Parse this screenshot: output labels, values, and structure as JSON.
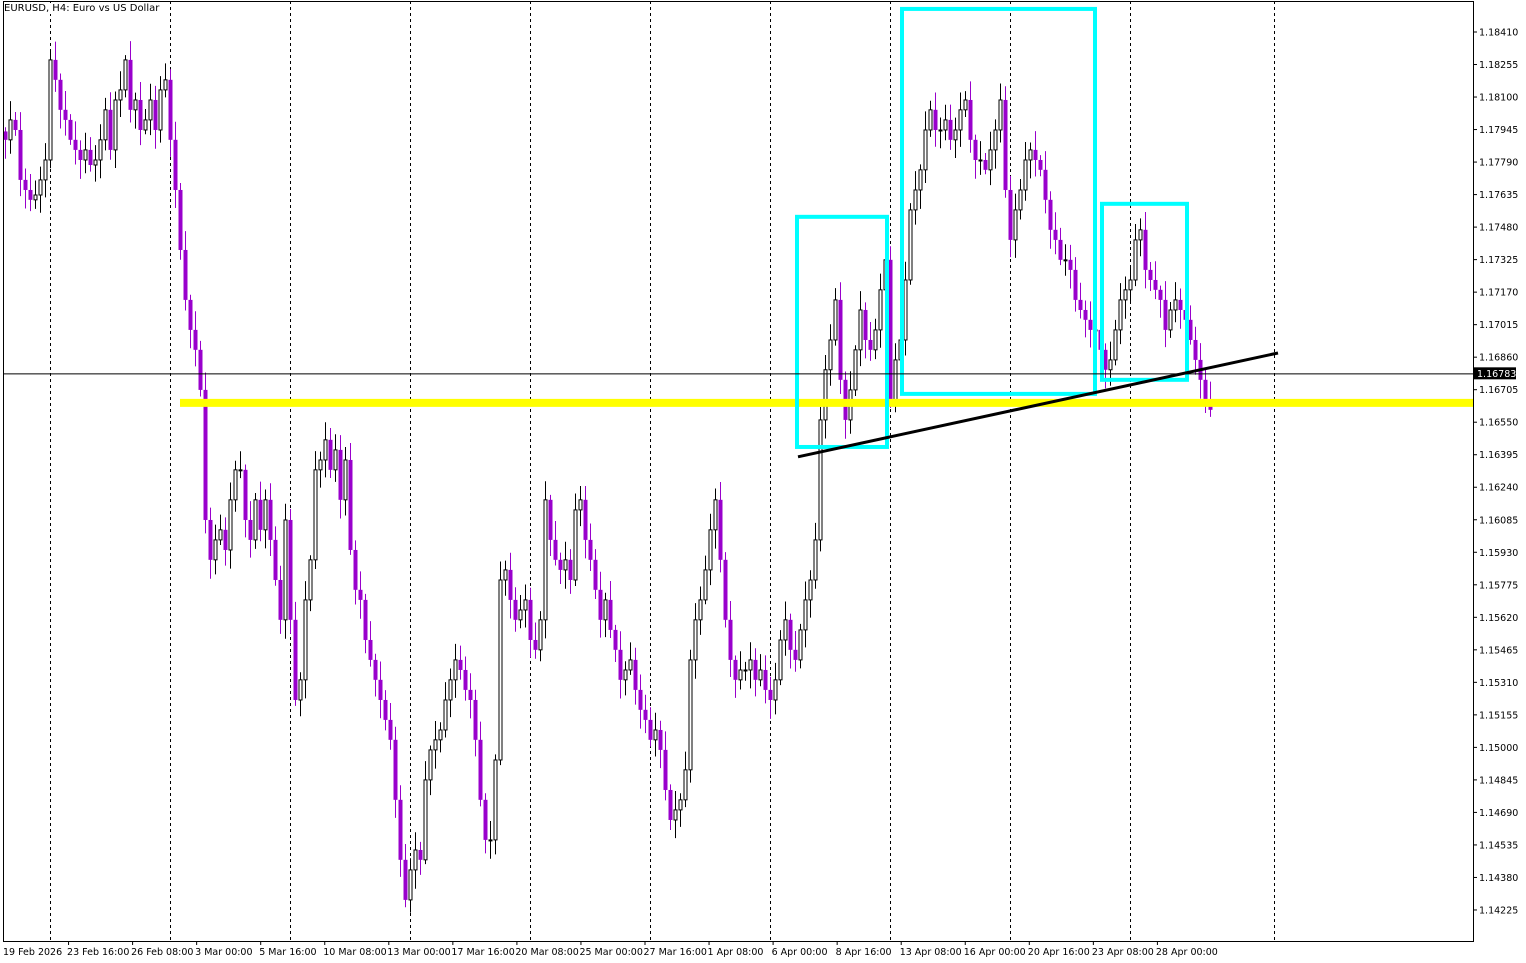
{
  "header": {
    "title": "EURUSD, H4:  Euro vs US Dollar"
  },
  "colors": {
    "bull_body": "#ffffff",
    "bull_outline": "#000000",
    "bear": "#9900cc",
    "support": "#ffff00",
    "boxes": "#00ffff",
    "trendline": "#000000",
    "bid_line": "#000000"
  },
  "chart_data": {
    "type": "candlestick",
    "symbol": "EURUSD",
    "timeframe": "H4",
    "ylim": [
      1.1408,
      1.18563
    ],
    "grid": "vertical dashed",
    "price_ticks": [
      "1.18410",
      "1.18255",
      "1.18100",
      "1.17945",
      "1.17790",
      "1.17635",
      "1.17480",
      "1.17325",
      "1.17170",
      "1.17015",
      "1.16860",
      "1.16705",
      "1.16550",
      "1.16395",
      "1.16240",
      "1.16085",
      "1.15930",
      "1.15775",
      "1.15620",
      "1.15465",
      "1.15310",
      "1.15155",
      "1.15000",
      "1.14845",
      "1.14690",
      "1.14535",
      "1.14380",
      "1.14225"
    ],
    "time_ticks": [
      "19 Feb 2026",
      "23 Feb 16:00",
      "26 Feb 08:00",
      "3 Mar 00:00",
      "5 Mar 16:00",
      "10 Mar 08:00",
      "13 Mar 00:00",
      "17 Mar 16:00",
      "20 Mar 08:00",
      "25 Mar 00:00",
      "27 Mar 16:00",
      "1 Apr 08:00",
      "6 Apr 00:00",
      "8 Apr 16:00",
      "13 Apr 08:00",
      "16 Apr 00:00",
      "20 Apr 16:00",
      "23 Apr 08:00",
      "28 Apr 00:00"
    ],
    "current_price": "1.16783",
    "closes": [
      1.17896,
      1.17991,
      1.17943,
      1.17705,
      1.17657,
      1.1761,
      1.17633,
      1.17705,
      1.178,
      1.18277,
      1.18182,
      1.18039,
      1.17991,
      1.17896,
      1.17848,
      1.178,
      1.17848,
      1.17776,
      1.178,
      1.17896,
      1.18039,
      1.17848,
      1.18086,
      1.18134,
      1.18277,
      1.18039,
      1.18086,
      1.17943,
      1.17991,
      1.18086,
      1.17943,
      1.18134,
      1.18182,
      1.17896,
      1.17657,
      1.17371,
      1.17133,
      1.1699,
      1.16895,
      1.16704,
      1.16084,
      1.15894,
      1.15989,
      1.16037,
      1.15941,
      1.1618,
      1.16323,
      1.16323,
      1.16084,
      1.15989,
      1.1618,
      1.16037,
      1.1618,
      1.15989,
      1.15798,
      1.15608,
      1.16084,
      1.15608,
      1.15226,
      1.15322,
      1.15703,
      1.15894,
      1.16323,
      1.1637,
      1.16466,
      1.16323,
      1.16418,
      1.1618,
      1.1637,
      1.15941,
      1.15751,
      1.15703,
      1.15512,
      1.15417,
      1.15322,
      1.15226,
      1.15131,
      1.15036,
      1.1475,
      1.14464,
      1.14273,
      1.14416,
      1.14511,
      1.14464,
      1.14845,
      1.14988,
      1.15036,
      1.15083,
      1.15226,
      1.15322,
      1.15417,
      1.15369,
      1.15274,
      1.15226,
      1.15036,
      1.1475,
      1.14559,
      1.14559,
      1.1494,
      1.15798,
      1.15846,
      1.15703,
      1.15608,
      1.15655,
      1.15703,
      1.15512,
      1.15465,
      1.15608,
      1.1618,
      1.15989,
      1.15894,
      1.15846,
      1.15894,
      1.15798,
      1.16132,
      1.1618,
      1.15989,
      1.15894,
      1.15751,
      1.15608,
      1.15703,
      1.1556,
      1.15465,
      1.15322,
      1.15369,
      1.15417,
      1.15274,
      1.15179,
      1.15131,
      1.15036,
      1.15083,
      1.14988,
      1.14797,
      1.14654,
      1.14702,
      1.1475,
      1.14893,
      1.15417,
      1.15608,
      1.15703,
      1.15846,
      1.16037,
      1.1618,
      1.15894,
      1.15608,
      1.15417,
      1.15322,
      1.15369,
      1.15369,
      1.15417,
      1.15322,
      1.15369,
      1.15274,
      1.15226,
      1.15322,
      1.15512,
      1.15608,
      1.15465,
      1.15417,
      1.1556,
      1.15703,
      1.15798,
      1.15989,
      1.16561,
      1.168,
      1.16942,
      1.17133,
      1.16752,
      1.16561,
      1.16704,
      1.16895,
      1.17085,
      1.16942,
      1.16895,
      1.1699,
      1.17181,
      1.17324,
      1.16656,
      1.16847,
      1.16942,
      1.17228,
      1.17562,
      1.17657,
      1.17753,
      1.17943,
      1.18039,
      1.17943,
      1.17943,
      1.17991,
      1.17896,
      1.17943,
      1.18039,
      1.18086,
      1.17896,
      1.178,
      1.178,
      1.17753,
      1.17848,
      1.17943,
      1.18086,
      1.17657,
      1.17419,
      1.17562,
      1.17657,
      1.178,
      1.17848,
      1.178,
      1.17753,
      1.1761,
      1.17467,
      1.17419,
      1.17324,
      1.17324,
      1.17276,
      1.17133,
      1.17085,
      1.17038,
      1.1699,
      1.1699,
      1.16895,
      1.168,
      1.16847,
      1.1699,
      1.17133,
      1.17181,
      1.17228,
      1.17419,
      1.17467,
      1.17276,
      1.17228,
      1.17181,
      1.17133,
      1.1699,
      1.17085,
      1.17133,
      1.17085,
      1.17038,
      1.16942,
      1.16847,
      1.16752,
      1.16656,
      1.16609
    ],
    "annotations": {
      "support_level": 1.16642,
      "boxes": [
        {
          "top": 1.17529,
          "bottom": 1.16432
        },
        {
          "top": 1.1852,
          "bottom": 1.16685
        },
        {
          "top": 1.17591,
          "bottom": 1.16752
        }
      ],
      "trendline": {
        "start_price": 1.16385,
        "end_price": 1.1688
      }
    }
  }
}
